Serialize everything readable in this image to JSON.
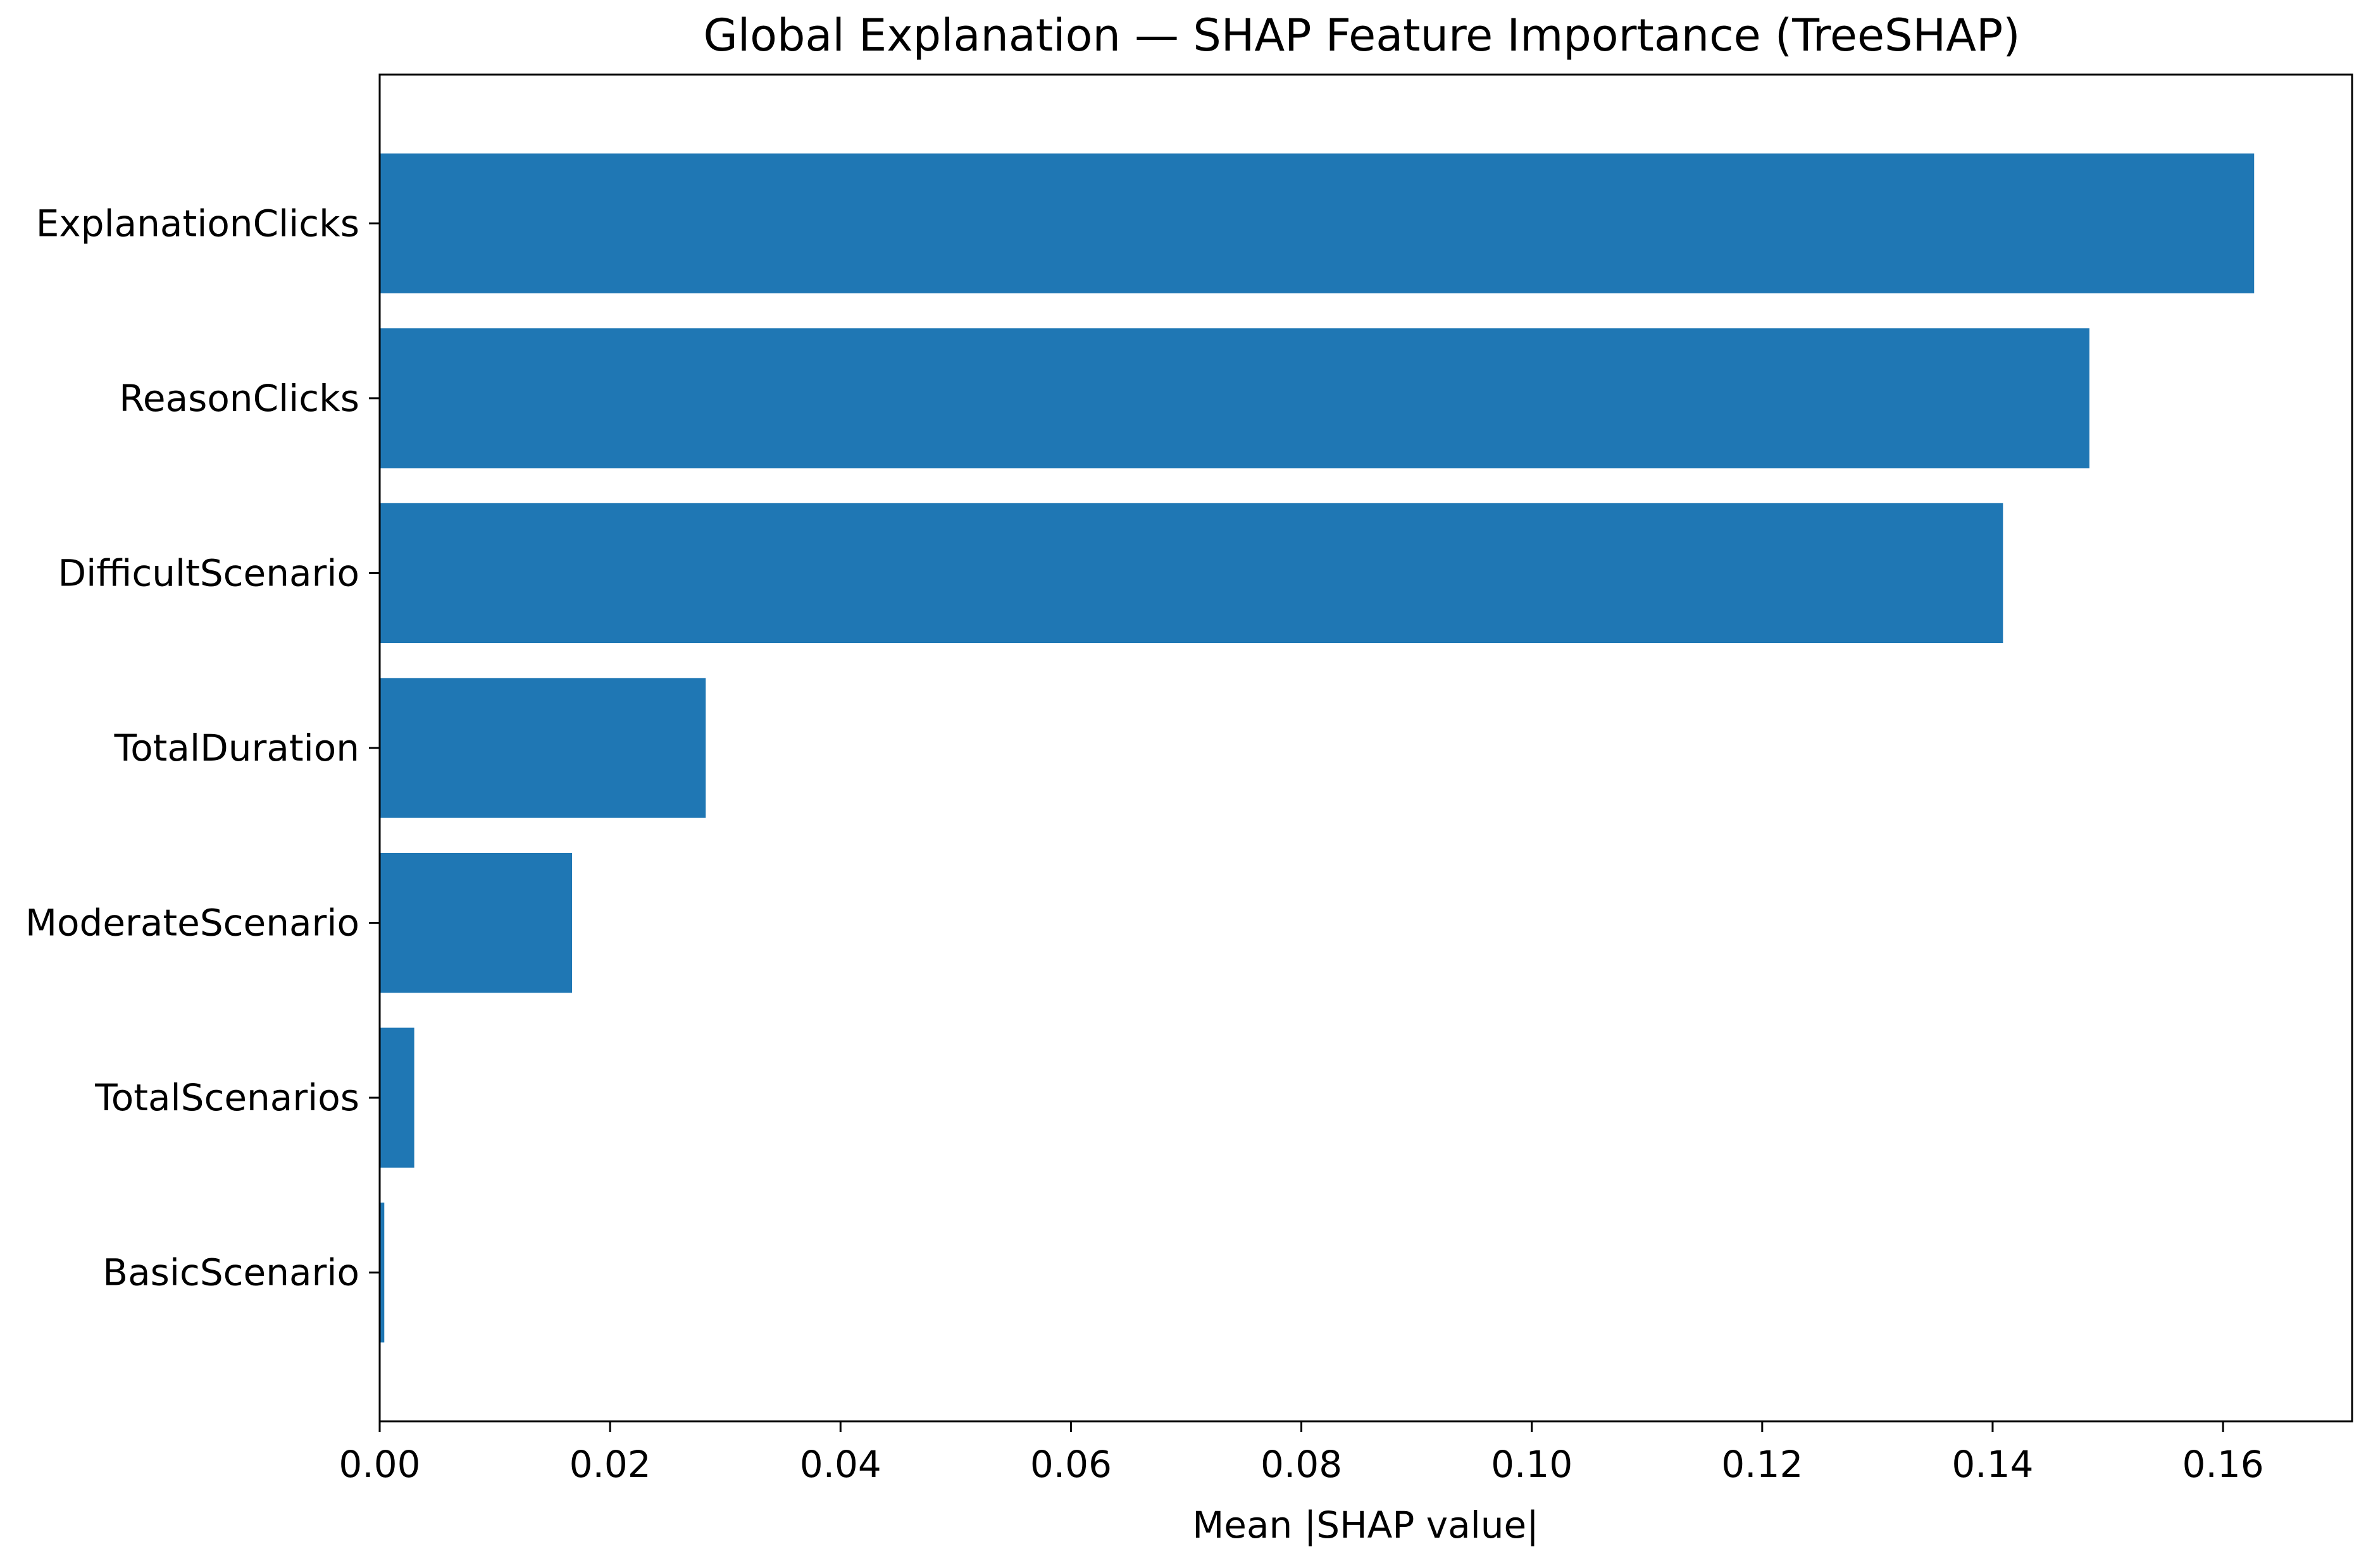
{
  "chart_data": {
    "type": "bar",
    "orientation": "horizontal",
    "title": "Global Explanation — SHAP Feature Importance (TreeSHAP)",
    "xlabel": "Mean |SHAP value|",
    "ylabel": "",
    "categories": [
      "ExplanationClicks",
      "ReasonClicks",
      "DifficultScenario",
      "TotalDuration",
      "ModerateScenario",
      "TotalScenarios",
      "BasicScenario"
    ],
    "values": [
      0.1627,
      0.1484,
      0.1409,
      0.0283,
      0.0167,
      0.003,
      0.0004
    ],
    "xlim": [
      0.0,
      0.1712
    ],
    "xticks": [
      {
        "value": 0.0,
        "label": "0.00"
      },
      {
        "value": 0.02,
        "label": "0.02"
      },
      {
        "value": 0.04,
        "label": "0.04"
      },
      {
        "value": 0.06,
        "label": "0.06"
      },
      {
        "value": 0.08,
        "label": "0.08"
      },
      {
        "value": 0.1,
        "label": "0.10"
      },
      {
        "value": 0.12,
        "label": "0.12"
      },
      {
        "value": 0.14,
        "label": "0.14"
      },
      {
        "value": 0.16,
        "label": "0.16"
      }
    ],
    "grid": false,
    "legend": "none",
    "colors": {
      "bar": "#1f77b4",
      "axis": "#000000",
      "background": "#ffffff"
    }
  }
}
